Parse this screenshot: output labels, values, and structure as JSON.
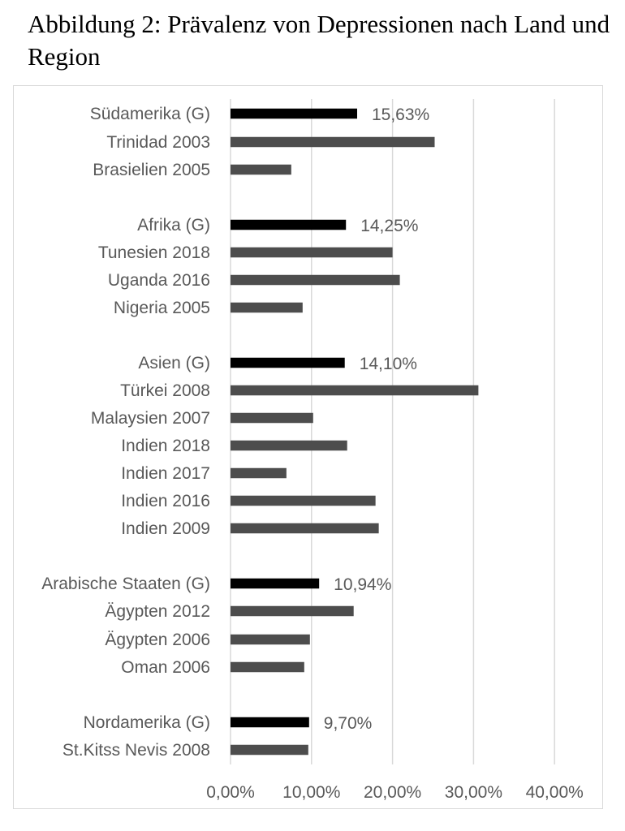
{
  "caption": "Abbildung 2: Prävalenz von Depressionen nach Land und Region",
  "colors": {
    "group_bar": "#000000",
    "country_bar": "#4d4d4d",
    "grid": "#d9d9d9",
    "text": "#595959"
  },
  "chart_data": {
    "type": "bar",
    "orientation": "horizontal",
    "title": "",
    "xlabel": "",
    "ylabel": "",
    "xlim": [
      0,
      40
    ],
    "x_ticks": [
      "0,00%",
      "10,00%",
      "20,00%",
      "30,00%",
      "40,00%"
    ],
    "grid": true,
    "legend": "none",
    "bars": [
      {
        "label": "Südamerika (G)",
        "value": 15.63,
        "kind": "group",
        "value_label": "15,63%"
      },
      {
        "label": "Trinidad 2003",
        "value": 25.2,
        "kind": "country",
        "value_label": ""
      },
      {
        "label": "Brasielien 2005",
        "value": 7.5,
        "kind": "country",
        "value_label": ""
      },
      {
        "label": "Afrika (G)",
        "value": 14.25,
        "kind": "group",
        "value_label": "14,25%"
      },
      {
        "label": "Tunesien 2018",
        "value": 20.0,
        "kind": "country",
        "value_label": ""
      },
      {
        "label": "Uganda 2016",
        "value": 20.9,
        "kind": "country",
        "value_label": ""
      },
      {
        "label": "Nigeria 2005",
        "value": 8.9,
        "kind": "country",
        "value_label": ""
      },
      {
        "label": "Asien (G)",
        "value": 14.1,
        "kind": "group",
        "value_label": "14,10%"
      },
      {
        "label": "Türkei 2008",
        "value": 30.6,
        "kind": "country",
        "value_label": ""
      },
      {
        "label": "Malaysien 2007",
        "value": 10.2,
        "kind": "country",
        "value_label": ""
      },
      {
        "label": "Indien 2018",
        "value": 14.4,
        "kind": "country",
        "value_label": ""
      },
      {
        "label": "Indien 2017",
        "value": 6.9,
        "kind": "country",
        "value_label": ""
      },
      {
        "label": "Indien 2016",
        "value": 17.9,
        "kind": "country",
        "value_label": ""
      },
      {
        "label": "Indien 2009",
        "value": 18.3,
        "kind": "country",
        "value_label": ""
      },
      {
        "label": "Arabische Staaten (G)",
        "value": 10.94,
        "kind": "group",
        "value_label": "10,94%"
      },
      {
        "label": "Ägypten 2012",
        "value": 15.2,
        "kind": "country",
        "value_label": ""
      },
      {
        "label": "Ägypten 2006",
        "value": 9.8,
        "kind": "country",
        "value_label": ""
      },
      {
        "label": "Oman 2006",
        "value": 9.1,
        "kind": "country",
        "value_label": ""
      },
      {
        "label": "Nordamerika (G)",
        "value": 9.7,
        "kind": "group",
        "value_label": "9,70%"
      },
      {
        "label": "St.Kitss Nevis 2008",
        "value": 9.6,
        "kind": "country",
        "value_label": ""
      }
    ]
  }
}
